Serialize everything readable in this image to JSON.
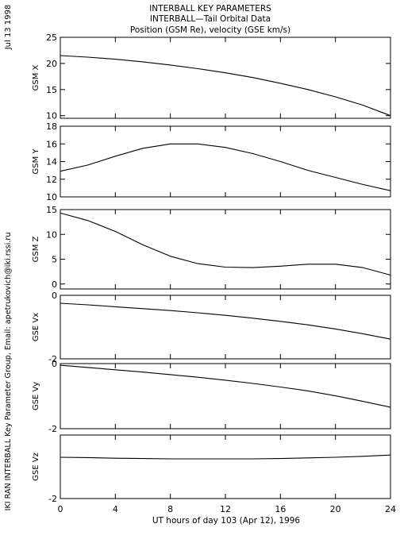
{
  "header": {
    "line1": "INTERBALL KEY PARAMETERS",
    "line2": "INTERBALL—Tail Orbital Data",
    "line3": "Position (GSM Re), velocity (GSE km/s)"
  },
  "side_labels": {
    "date": "Jul 13 1998",
    "credit": "IKI RAN INTERBALL Key Parameter Group, Email: apetrukovich@iki.rssi.ru"
  },
  "x_axis": {
    "label": "UT hours of day 103 (Apr 12), 1996",
    "range": [
      0,
      24
    ],
    "ticks": [
      0,
      4,
      8,
      12,
      16,
      20,
      24
    ]
  },
  "chart_data": [
    {
      "type": "line",
      "ylabel": "GSM X",
      "ylim": [
        9.5,
        25
      ],
      "yticks": [
        10,
        15,
        20,
        25
      ],
      "x": [
        0,
        2,
        4,
        6,
        8,
        10,
        12,
        14,
        16,
        18,
        20,
        22,
        24
      ],
      "series": [
        {
          "values": [
            21.5,
            21.2,
            20.8,
            20.3,
            19.7,
            19.0,
            18.2,
            17.3,
            16.2,
            15.0,
            13.6,
            12.0,
            10.0
          ]
        }
      ]
    },
    {
      "type": "line",
      "ylabel": "GSM Y",
      "ylim": [
        10,
        18
      ],
      "yticks": [
        10,
        12,
        14,
        16,
        18
      ],
      "x": [
        0,
        2,
        4,
        6,
        8,
        10,
        12,
        14,
        16,
        18,
        20,
        22,
        24
      ],
      "series": [
        {
          "values": [
            12.9,
            13.6,
            14.6,
            15.5,
            16.0,
            16.0,
            15.6,
            14.9,
            14.0,
            13.0,
            12.2,
            11.4,
            10.7
          ]
        }
      ]
    },
    {
      "type": "line",
      "ylabel": "GSM Z",
      "ylim": [
        -1,
        15
      ],
      "yticks": [
        0,
        5,
        10,
        15
      ],
      "x": [
        0,
        2,
        4,
        6,
        8,
        10,
        12,
        14,
        16,
        18,
        20,
        22,
        24
      ],
      "series": [
        {
          "values": [
            14.3,
            12.8,
            10.6,
            7.9,
            5.6,
            4.1,
            3.4,
            3.3,
            3.6,
            4.0,
            4.0,
            3.3,
            1.8
          ]
        }
      ]
    },
    {
      "type": "line",
      "ylabel": "GSE Vx",
      "ylim": [
        -2,
        0
      ],
      "yticks": [
        0,
        -2
      ],
      "x": [
        0,
        2,
        4,
        6,
        8,
        10,
        12,
        14,
        16,
        18,
        20,
        22,
        24
      ],
      "series": [
        {
          "values": [
            -0.25,
            -0.3,
            -0.36,
            -0.42,
            -0.48,
            -0.55,
            -0.63,
            -0.72,
            -0.82,
            -0.93,
            -1.06,
            -1.21,
            -1.38
          ]
        }
      ]
    },
    {
      "type": "line",
      "ylabel": "GSE Vy",
      "ylim": [
        -2,
        0
      ],
      "yticks": [
        0,
        -2
      ],
      "x": [
        0,
        2,
        4,
        6,
        8,
        10,
        12,
        14,
        16,
        18,
        20,
        22,
        24
      ],
      "series": [
        {
          "values": [
            -0.05,
            -0.12,
            -0.19,
            -0.26,
            -0.34,
            -0.42,
            -0.51,
            -0.61,
            -0.72,
            -0.84,
            -0.99,
            -1.16,
            -1.34
          ]
        }
      ]
    },
    {
      "type": "line",
      "ylabel": "GSE Vz",
      "ylim": [
        -2,
        0
      ],
      "yticks": [
        -2
      ],
      "x": [
        0,
        2,
        4,
        6,
        8,
        10,
        12,
        14,
        16,
        18,
        20,
        22,
        24
      ],
      "series": [
        {
          "values": [
            -0.7,
            -0.71,
            -0.73,
            -0.74,
            -0.75,
            -0.75,
            -0.75,
            -0.75,
            -0.74,
            -0.72,
            -0.7,
            -0.67,
            -0.63
          ]
        }
      ]
    }
  ]
}
